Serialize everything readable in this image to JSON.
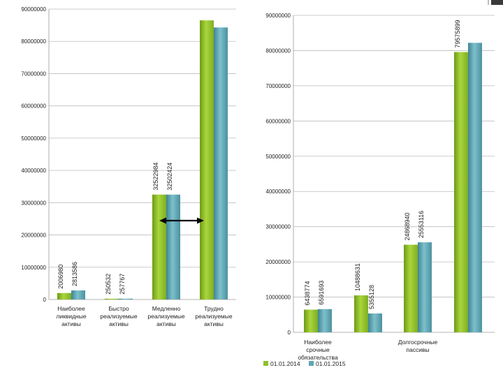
{
  "chart_data": [
    {
      "type": "bar",
      "categories": [
        "Наиболее ликвидные активы",
        "Быстро реализуемые активы",
        "Медленно реализуемые активы",
        "Трудно реализуемые активы"
      ],
      "series": [
        {
          "name": "01.01.2014",
          "values": [
            2006980,
            250532,
            32522984,
            86500000
          ],
          "labels": [
            "2006980",
            "250532",
            "32522984",
            ""
          ]
        },
        {
          "name": "01.01.2015",
          "values": [
            2813586,
            257767,
            32502424,
            84300000
          ],
          "labels": [
            "2813586",
            "257767",
            "32502424",
            ""
          ]
        }
      ],
      "yticks": [
        "0",
        "10000000",
        "20000000",
        "30000000",
        "40000000",
        "50000000",
        "60000000",
        "70000000",
        "80000000",
        "90000000"
      ],
      "ylim": [
        0,
        90000000
      ],
      "grid": true,
      "title": "",
      "xlabel": "",
      "ylabel": ""
    },
    {
      "type": "bar",
      "categories": [
        "Наиболее срочные обязательства",
        "",
        "Долгосрочные пассивы",
        ""
      ],
      "series": [
        {
          "name": "01.01.2014",
          "values": [
            6438774,
            10488631,
            24868940,
            79575899
          ],
          "labels": [
            "6438774",
            "10488631",
            "24868940",
            "79575899"
          ]
        },
        {
          "name": "01.01.2015",
          "values": [
            6591693,
            5355128,
            25553116,
            82200000
          ],
          "labels": [
            "6591693",
            "5355128",
            "25553116",
            ""
          ]
        }
      ],
      "yticks": [
        "0",
        "10000000",
        "20000000",
        "30000000",
        "40000000",
        "50000000",
        "60000000",
        "70000000",
        "80000000",
        "90000000"
      ],
      "ylim": [
        0,
        90000000
      ],
      "grid": true,
      "legend": "bottom-left",
      "title": "",
      "xlabel": "",
      "ylabel": ""
    }
  ],
  "colors": {
    "series_2014": "#8fc12a",
    "series_2015": "#5fa6b3",
    "grid": "#bdbdbd"
  },
  "annotation": {
    "type": "double-arrow",
    "color": "#000000"
  }
}
